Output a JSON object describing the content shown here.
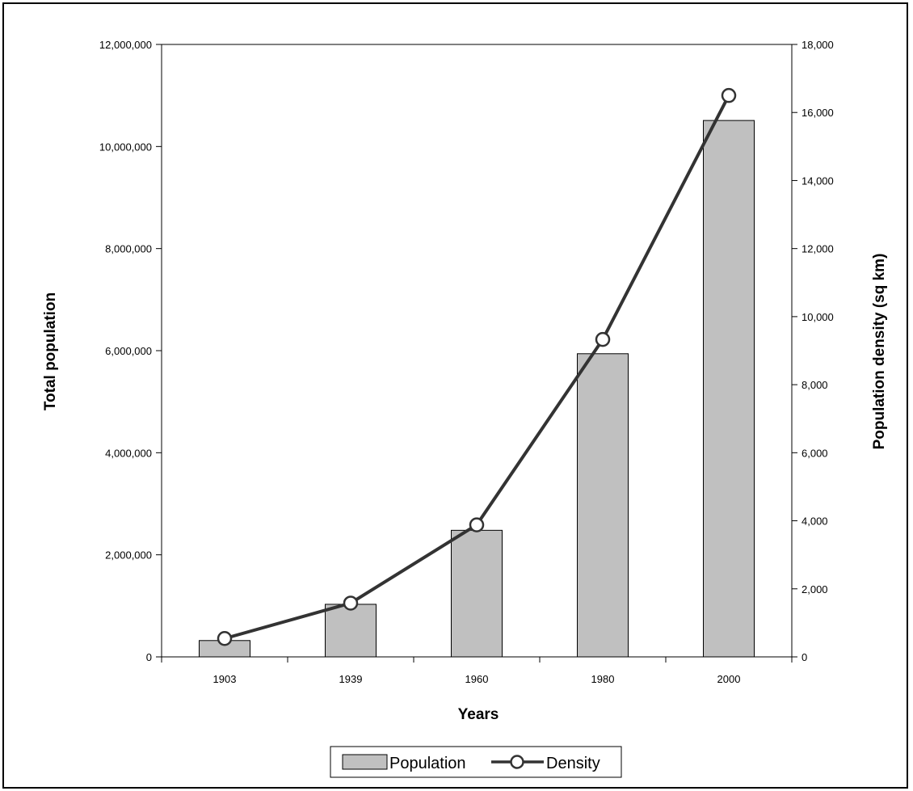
{
  "chart_data": {
    "type": "bar",
    "categories": [
      "1903",
      "1939",
      "1960",
      "1980",
      "2000"
    ],
    "series": [
      {
        "name": "Population",
        "type": "bar",
        "axis": "left",
        "values": [
          320000,
          1030000,
          2480000,
          5940000,
          10510000
        ]
      },
      {
        "name": "Density",
        "type": "line",
        "axis": "right",
        "values": [
          540,
          1580,
          3880,
          9330,
          16500
        ]
      }
    ],
    "xlabel": "Years",
    "ylabel": "Total population",
    "y2label": "Population density (sq km)",
    "ylim": [
      0,
      12000000
    ],
    "y2lim": [
      0,
      18000
    ],
    "yticks": [
      "0",
      "2,000,000",
      "4,000,000",
      "6,000,000",
      "8,000,000",
      "10,000,000",
      "12,000,000"
    ],
    "y2ticks": [
      "0",
      "2,000",
      "4,000",
      "6,000",
      "8,000",
      "10,000",
      "12,000",
      "14,000",
      "16,000",
      "18,000"
    ],
    "grid": false,
    "legend": "bottom-center",
    "colors": {
      "bar_fill": "#c0c0c0",
      "bar_stroke": "#000000",
      "line": "#333333",
      "marker_fill": "#ffffff"
    }
  },
  "legend": {
    "population_label": "Population",
    "density_label": "Density"
  }
}
